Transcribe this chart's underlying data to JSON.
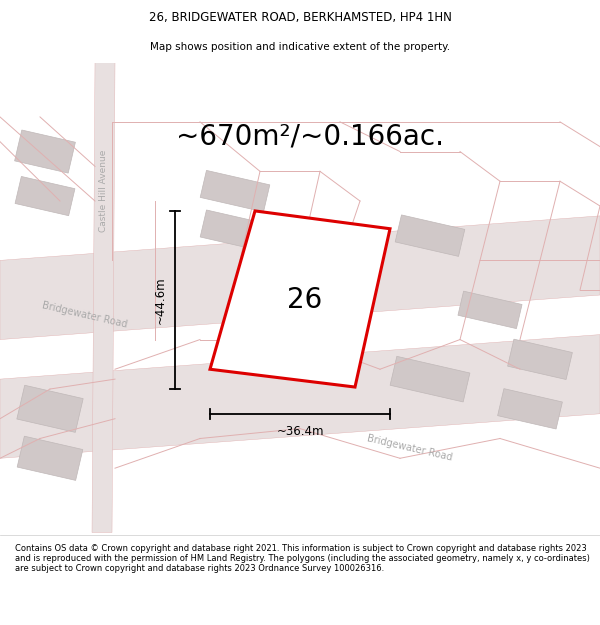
{
  "title_line1": "26, BRIDGEWATER ROAD, BERKHAMSTED, HP4 1HN",
  "title_line2": "Map shows position and indicative extent of the property.",
  "area_label": "~670m²/~0.166ac.",
  "plot_number": "26",
  "dim_height": "~44.6m",
  "dim_width": "~36.4m",
  "footer_text": "Contains OS data © Crown copyright and database right 2021. This information is subject to Crown copyright and database rights 2023 and is reproduced with the permission of HM Land Registry. The polygons (including the associated geometry, namely x, y co-ordinates) are subject to Crown copyright and database rights 2023 Ordnance Survey 100026316.",
  "map_bg": "#f7f4f4",
  "road_fill": "#e8e0e0",
  "road_line": "#e0b0b0",
  "building_fill": "#d0c8c8",
  "building_edge": "#c0b8b8",
  "road_label_color": "#aaaaaa",
  "red_color": "#dd0000",
  "title_fontsize": 8.5,
  "subtitle_fontsize": 7.5,
  "area_fontsize": 20,
  "number_fontsize": 20,
  "footer_fontsize": 6.0,
  "dim_fontsize": 8.5
}
